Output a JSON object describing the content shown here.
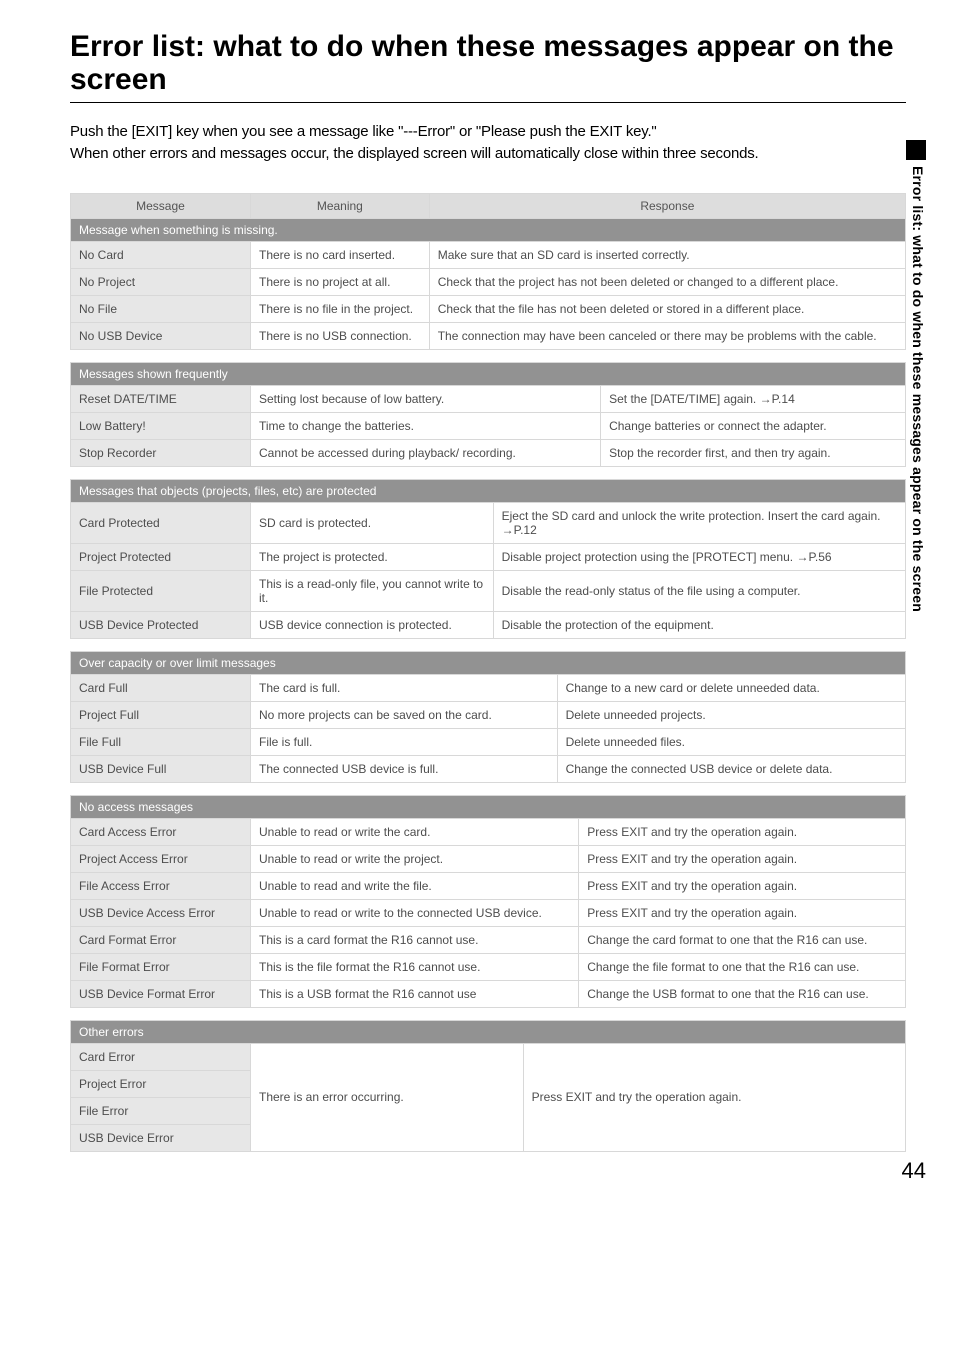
{
  "title": "Error list: what to do when these messages appear on the screen",
  "intro_line1": "Push the [EXIT] key when you see a message like \"---Error\" or \"Please push the EXIT key.\"",
  "intro_line2": "When other errors and messages occur, the displayed screen will automatically close within three seconds.",
  "side_text": "Error list: what to do when these messages appear on the screen",
  "page_num": "44",
  "headers": {
    "c1": "Message",
    "c2": "Meaning",
    "c3": "Response"
  },
  "sections": {
    "s1": {
      "title": "Message when something is missing.",
      "rows": [
        {
          "m": "No Card",
          "n": "There is no card inserted.",
          "r": "Make sure that an SD card is inserted correctly."
        },
        {
          "m": "No Project",
          "n": "There is no project at all.",
          "r": "Check that the project has not been deleted or changed to a different place."
        },
        {
          "m": "No File",
          "n": "There is no file in the project.",
          "r": "Check that the file has not been deleted or stored in a different place."
        },
        {
          "m": "No USB Device",
          "n": "There is no USB connection.",
          "r": "The connection may have been canceled or there may be problems with the cable."
        }
      ]
    },
    "s2": {
      "title": "Messages shown frequently",
      "rows": [
        {
          "m": "Reset DATE/TIME",
          "n": "Setting lost because of low battery.",
          "r": "Set the [DATE/TIME] again. →P.14"
        },
        {
          "m": "Low Battery!",
          "n": "Time to change the batteries.",
          "r": "Change batteries or connect the adapter."
        },
        {
          "m": "Stop Recorder",
          "n": "Cannot be accessed during playback/ recording.",
          "r": "Stop the recorder first, and then try again."
        }
      ]
    },
    "s3": {
      "title": "Messages that objects (projects, files, etc) are protected",
      "rows": [
        {
          "m": "Card Protected",
          "n": "SD card is protected.",
          "r": "Eject the SD card and unlock the write protection. Insert the card again. →P.12"
        },
        {
          "m": "Project Protected",
          "n": "The project is protected.",
          "r": "Disable project protection using the [PROTECT] menu. →P.56"
        },
        {
          "m": "File Protected",
          "n": "This is a read-only file, you cannot write to it.",
          "r": "Disable the read-only status of the file using a computer."
        },
        {
          "m": "USB Device Protected",
          "n": "USB device connection is protected.",
          "r": "Disable the protection of the equipment."
        }
      ]
    },
    "s4": {
      "title": "Over capacity or over limit messages",
      "rows": [
        {
          "m": "Card Full",
          "n": "The card is full.",
          "r": "Change to a new card or delete unneeded data."
        },
        {
          "m": "Project Full",
          "n": "No more projects can be saved on the card.",
          "r": "Delete unneeded projects."
        },
        {
          "m": "File Full",
          "n": "File is full.",
          "r": "Delete unneeded files."
        },
        {
          "m": "USB Device Full",
          "n": "The connected USB device is full.",
          "r": "Change the connected USB device or delete data."
        }
      ]
    },
    "s5": {
      "title": "No access messages",
      "rows": [
        {
          "m": "Card Access Error",
          "n": "Unable to read or write the card.",
          "r": "Press EXIT and try the operation again."
        },
        {
          "m": "Project Access Error",
          "n": "Unable to read or write the project.",
          "r": "Press EXIT and try the operation again."
        },
        {
          "m": "File Access Error",
          "n": "Unable to read and write the file.",
          "r": "Press EXIT and try the operation again."
        },
        {
          "m": "USB Device Access Error",
          "n": "Unable to read or write to the connected USB device.",
          "r": "Press EXIT and try the operation again."
        },
        {
          "m": "Card Format Error",
          "n": "This is a card format the R16 cannot use.",
          "r": "Change the card format to one that the R16 can use."
        },
        {
          "m": "File Format Error",
          "n": "This is the file format the R16 cannot use.",
          "r": "Change the file format to one that the R16 can use."
        },
        {
          "m": "USB Device Format Error",
          "n": "This is a USB format the R16 cannot use",
          "r": "Change the USB format to one that the R16 can use."
        }
      ]
    },
    "s6": {
      "title": "Other errors",
      "merged_meaning": "There is an error occurring.",
      "merged_response": "Press EXIT and try the operation again.",
      "rows": [
        {
          "m": "Card Error"
        },
        {
          "m": "Project Error"
        },
        {
          "m": "File  Error"
        },
        {
          "m": "USB Device Error"
        }
      ]
    }
  }
}
